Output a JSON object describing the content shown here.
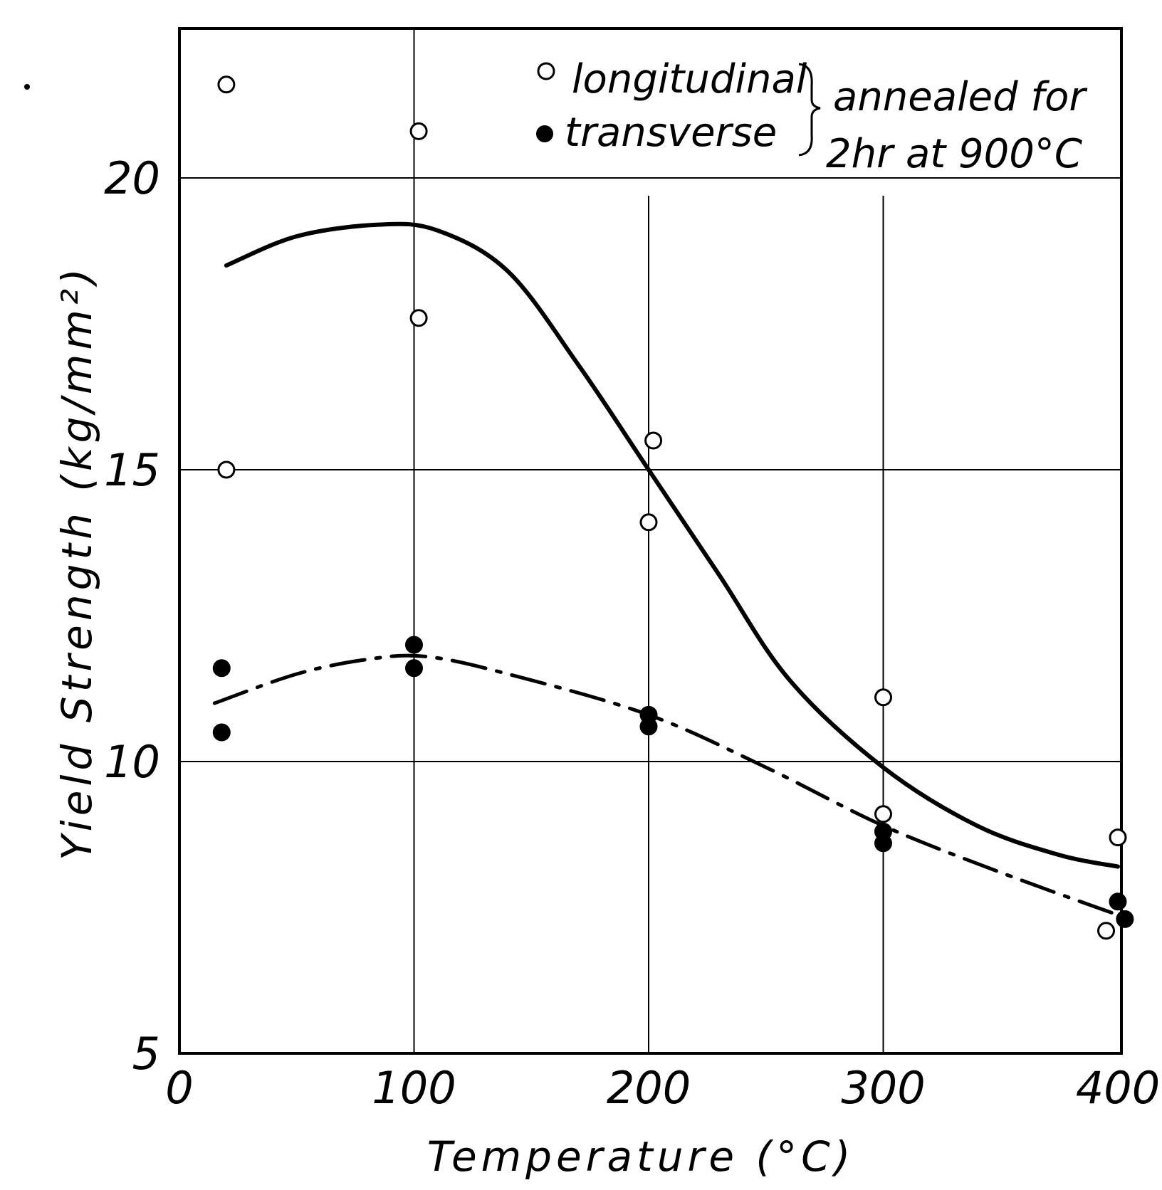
{
  "chart_data": {
    "type": "scatter",
    "xlabel": "Temperature (°C)",
    "ylabel": "Yield Strength (kg/mm²)",
    "xlim": [
      0,
      400
    ],
    "ylim": [
      5,
      23
    ],
    "x_ticks": [
      "0",
      "100",
      "200",
      "300",
      "400"
    ],
    "y_ticks": [
      "5",
      "10",
      "15",
      "20"
    ],
    "legend": {
      "entries": [
        "longitudinal",
        "transverse"
      ],
      "note_line1": "annealed for",
      "note_line2": "2hr at 900°C",
      "placement": "top-right"
    },
    "series": [
      {
        "name": "longitudinal",
        "marker": "open-circle",
        "points": [
          [
            20,
            21.6
          ],
          [
            20,
            15.0
          ],
          [
            102,
            20.8
          ],
          [
            102,
            17.6
          ],
          [
            202,
            15.5
          ],
          [
            200,
            14.1
          ],
          [
            300,
            11.1
          ],
          [
            300,
            9.1
          ],
          [
            395,
            7.1
          ],
          [
            400,
            8.7
          ]
        ]
      },
      {
        "name": "transverse",
        "marker": "filled-circle",
        "points": [
          [
            18,
            11.6
          ],
          [
            18,
            10.5
          ],
          [
            100,
            12.0
          ],
          [
            100,
            11.6
          ],
          [
            200,
            10.8
          ],
          [
            200,
            10.6
          ],
          [
            300,
            8.8
          ],
          [
            300,
            8.6
          ],
          [
            400,
            7.6
          ],
          [
            403,
            7.3
          ]
        ]
      }
    ],
    "curves": [
      {
        "name": "longitudinal-fit",
        "style": "solid",
        "points": [
          [
            20,
            18.5
          ],
          [
            50,
            19.0
          ],
          [
            85,
            19.2
          ],
          [
            110,
            19.1
          ],
          [
            140,
            18.4
          ],
          [
            170,
            16.8
          ],
          [
            200,
            15.0
          ],
          [
            230,
            13.2
          ],
          [
            260,
            11.4
          ],
          [
            300,
            9.9
          ],
          [
            340,
            8.9
          ],
          [
            375,
            8.4
          ],
          [
            400,
            8.2
          ]
        ]
      },
      {
        "name": "transverse-fit",
        "style": "dash-dot",
        "points": [
          [
            15,
            11.0
          ],
          [
            50,
            11.5
          ],
          [
            80,
            11.75
          ],
          [
            105,
            11.8
          ],
          [
            140,
            11.5
          ],
          [
            200,
            10.8
          ],
          [
            250,
            9.9
          ],
          [
            300,
            8.9
          ],
          [
            350,
            8.1
          ],
          [
            405,
            7.3
          ]
        ]
      }
    ]
  }
}
